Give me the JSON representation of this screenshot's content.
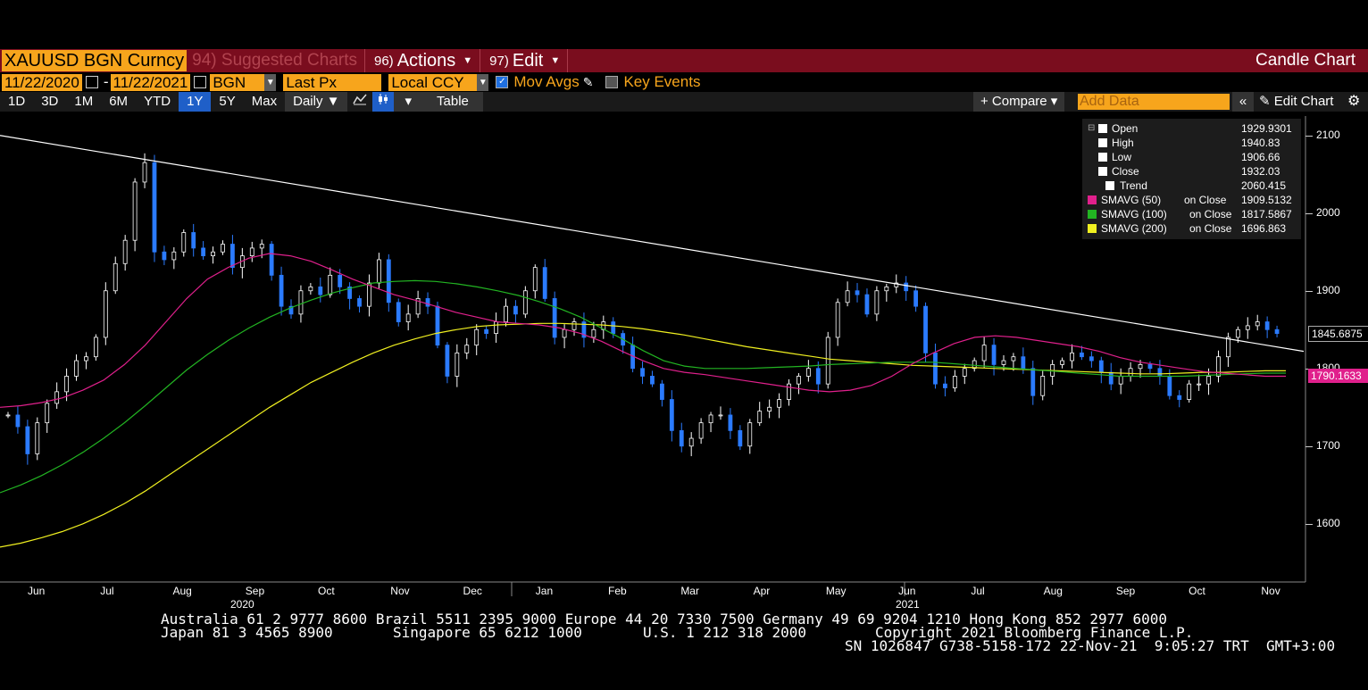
{
  "header": {
    "ticker": "XAUUSD BGN Curncy",
    "suggested": "94) Suggested Charts",
    "actions_num": "96)",
    "actions": "Actions",
    "edit_num": "97)",
    "edit": "Edit",
    "chart_title": "Candle Chart"
  },
  "options": {
    "start_date": "11/22/2020",
    "dash": "-",
    "end_date": "11/22/2021",
    "source": "BGN",
    "field": "Last Px",
    "currency": "Local CCY",
    "mov_avgs": "Mov Avgs",
    "mov_avgs_checked": true,
    "key_events": "Key Events",
    "key_events_checked": false
  },
  "toolbar": {
    "ranges": [
      "1D",
      "3D",
      "1M",
      "6M",
      "YTD",
      "1Y",
      "5Y",
      "Max"
    ],
    "active_range": "1Y",
    "frequency": "Daily ▼",
    "table": "Table",
    "compare": "+ Compare ▾",
    "add_data_placeholder": "Add Data",
    "edit_chart": "Edit Chart"
  },
  "legend": [
    {
      "name": "Open",
      "suffix": "",
      "value": "1929.9301",
      "color": "#ffffff"
    },
    {
      "name": "High",
      "suffix": "",
      "value": "1940.83",
      "color": "#ffffff"
    },
    {
      "name": "Low",
      "suffix": "",
      "value": "1906.66",
      "color": "#ffffff"
    },
    {
      "name": "Close",
      "suffix": "",
      "value": "1932.03",
      "color": "#ffffff"
    },
    {
      "name": "Trend",
      "suffix": "",
      "value": "2060.415",
      "color": "#ffffff"
    },
    {
      "name": "SMAVG (50)",
      "suffix": "on Close",
      "value": "1909.5132",
      "color": "#e0208c"
    },
    {
      "name": "SMAVG (100)",
      "suffix": "on Close",
      "value": "1817.5867",
      "color": "#22b422"
    },
    {
      "name": "SMAVG (200)",
      "suffix": "on Close",
      "value": "1696.863",
      "color": "#f0f020"
    }
  ],
  "price_labels": {
    "last": "1845.6875",
    "sma50": "1790.1633"
  },
  "chart_data": {
    "type": "candlestick",
    "ylim": [
      1525,
      2125
    ],
    "y_ticks": [
      1600,
      1700,
      1800,
      1900,
      2000,
      2100
    ],
    "x_ticks": [
      "Jun",
      "Jul",
      "Aug",
      "Sep",
      "Oct",
      "Nov",
      "Dec",
      "Jan",
      "Feb",
      "Mar",
      "Apr",
      "May",
      "Jun",
      "Jul",
      "Aug",
      "Sep",
      "Oct",
      "Nov"
    ],
    "year_labels": [
      "2020",
      "2021"
    ],
    "close_series": [
      1740,
      1725,
      1690,
      1730,
      1755,
      1770,
      1790,
      1810,
      1815,
      1840,
      1900,
      1935,
      1965,
      2040,
      2065,
      1950,
      1940,
      1950,
      1975,
      1955,
      1945,
      1950,
      1960,
      1930,
      1945,
      1955,
      1960,
      1920,
      1880,
      1870,
      1900,
      1905,
      1895,
      1920,
      1905,
      1890,
      1880,
      1910,
      1940,
      1885,
      1860,
      1870,
      1890,
      1880,
      1830,
      1790,
      1820,
      1830,
      1850,
      1845,
      1860,
      1880,
      1870,
      1900,
      1930,
      1890,
      1840,
      1850,
      1860,
      1840,
      1850,
      1860,
      1845,
      1830,
      1800,
      1790,
      1780,
      1760,
      1720,
      1700,
      1710,
      1730,
      1740,
      1740,
      1720,
      1700,
      1730,
      1745,
      1750,
      1760,
      1780,
      1790,
      1800,
      1780,
      1840,
      1885,
      1900,
      1895,
      1870,
      1900,
      1905,
      1910,
      1900,
      1880,
      1820,
      1780,
      1775,
      1790,
      1800,
      1810,
      1830,
      1805,
      1810,
      1815,
      1800,
      1765,
      1790,
      1805,
      1810,
      1820,
      1815,
      1810,
      1795,
      1780,
      1790,
      1800,
      1805,
      1800,
      1790,
      1765,
      1760,
      1780,
      1780,
      1790,
      1815,
      1840,
      1850,
      1855,
      1860,
      1850,
      1845
    ],
    "trend_line": {
      "start": 2100,
      "end": 1822
    },
    "sma50_series": [
      1750,
      1752,
      1756,
      1762,
      1772,
      1785,
      1805,
      1830,
      1860,
      1890,
      1915,
      1930,
      1942,
      1948,
      1945,
      1938,
      1927,
      1915,
      1905,
      1895,
      1888,
      1880,
      1872,
      1866,
      1860,
      1858,
      1856,
      1852,
      1845,
      1835,
      1822,
      1810,
      1800,
      1795,
      1792,
      1788,
      1784,
      1780,
      1776,
      1772,
      1770,
      1772,
      1778,
      1790,
      1806,
      1820,
      1832,
      1840,
      1842,
      1840,
      1836,
      1832,
      1828,
      1822,
      1814,
      1808,
      1804,
      1800,
      1796,
      1794,
      1792,
      1790,
      1790
    ],
    "sma100_series": [
      1640,
      1650,
      1662,
      1676,
      1692,
      1710,
      1730,
      1752,
      1775,
      1798,
      1818,
      1836,
      1852,
      1866,
      1878,
      1888,
      1897,
      1904,
      1910,
      1912,
      1913,
      1912,
      1909,
      1905,
      1900,
      1894,
      1886,
      1877,
      1866,
      1852,
      1838,
      1823,
      1810,
      1803,
      1800,
      1800,
      1800,
      1801,
      1802,
      1803,
      1805,
      1806,
      1807,
      1808,
      1808,
      1808,
      1806,
      1804,
      1802,
      1800,
      1798,
      1796,
      1794,
      1792,
      1790,
      1790,
      1790,
      1790,
      1791,
      1792,
      1793,
      1794,
      1794
    ],
    "sma200_series": [
      1570,
      1575,
      1582,
      1590,
      1600,
      1612,
      1626,
      1642,
      1660,
      1678,
      1696,
      1714,
      1732,
      1750,
      1766,
      1782,
      1795,
      1808,
      1820,
      1830,
      1838,
      1845,
      1850,
      1854,
      1856,
      1857,
      1858,
      1858,
      1857,
      1856,
      1854,
      1851,
      1847,
      1843,
      1838,
      1833,
      1828,
      1824,
      1820,
      1816,
      1812,
      1810,
      1808,
      1806,
      1804,
      1803,
      1802,
      1801,
      1800,
      1799,
      1798,
      1797,
      1796,
      1795,
      1794,
      1793,
      1793,
      1794,
      1795,
      1795,
      1796,
      1797,
      1797
    ]
  },
  "footer": {
    "line1": "Australia 61 2 9777 8600 Brazil 5511 2395 9000 Europe 44 20 7330 7500 Germany 49 69 9204 1210 Hong Kong 852 2977 6000",
    "line2a": "Japan 81 3 4565 8900",
    "line2b": "Singapore 65 6212 1000",
    "line2c": "U.S. 1 212 318 2000",
    "line2d": "Copyright 2021 Bloomberg Finance L.P.",
    "line3": "SN 1026847 G738-5158-172 22-Nov-21  9:05:27 TRT  GMT+3:00"
  }
}
